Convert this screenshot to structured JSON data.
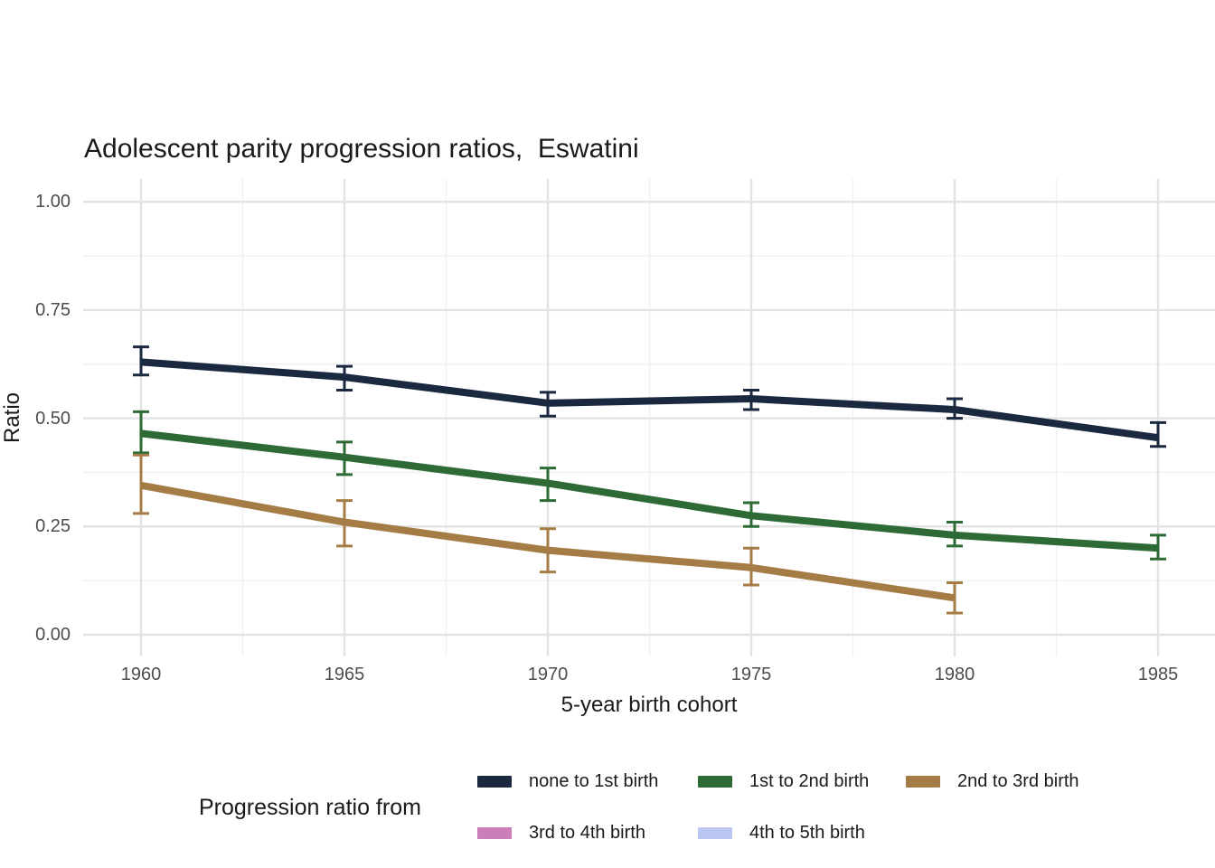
{
  "title": "Adolescent parity progression ratios,  Eswatini",
  "x_axis": {
    "label": "5-year birth cohort",
    "tick_labels": [
      "1960",
      "1965",
      "1970",
      "1975",
      "1980",
      "1985"
    ]
  },
  "y_axis": {
    "label": "Ratio",
    "tick_labels": [
      "1.00",
      "0.75",
      "0.50",
      "0.25",
      "0.00"
    ]
  },
  "legend": {
    "title": "Progression ratio from",
    "items": [
      {
        "label": "none to 1st birth",
        "color": "#1b2940",
        "row": 0
      },
      {
        "label": "1st to 2nd birth",
        "color": "#2d6a35",
        "row": 0
      },
      {
        "label": "2nd to 3rd birth",
        "color": "#a57c45",
        "row": 0
      },
      {
        "label": "3rd to 4th birth",
        "color": "#cb7eb7",
        "row": 1
      },
      {
        "label": "4th to 5th birth",
        "color": "#bcc6f2",
        "row": 1
      }
    ]
  },
  "chart_data": {
    "type": "line",
    "title": "Adolescent parity progression ratios,  Eswatini",
    "xlabel": "5-year birth cohort",
    "ylabel": "Ratio",
    "xlim": [
      1958.6,
      1986.4
    ],
    "ylim": [
      0,
      1
    ],
    "x_major_ticks": [
      1960,
      1965,
      1970,
      1975,
      1980,
      1985
    ],
    "x_minor_ticks": [
      1962.5,
      1967.5,
      1972.5,
      1977.5,
      1982.5
    ],
    "y_major_ticks": [
      0,
      0.25,
      0.5,
      0.75,
      1.0
    ],
    "y_minor_ticks": [
      0.125,
      0.375,
      0.625,
      0.875
    ],
    "grid": true,
    "error_bars": true,
    "legend_position": "bottom",
    "series": [
      {
        "name": "none to 1st birth",
        "color": "#1b2940",
        "x": [
          1960,
          1965,
          1970,
          1975,
          1980,
          1985
        ],
        "y": [
          0.63,
          0.595,
          0.535,
          0.545,
          0.52,
          0.455
        ],
        "ci_low": [
          0.6,
          0.565,
          0.505,
          0.52,
          0.5,
          0.435
        ],
        "ci_high": [
          0.665,
          0.62,
          0.56,
          0.565,
          0.545,
          0.49
        ]
      },
      {
        "name": "1st to 2nd birth",
        "color": "#2d6a35",
        "x": [
          1960,
          1965,
          1970,
          1975,
          1980,
          1985
        ],
        "y": [
          0.465,
          0.41,
          0.35,
          0.275,
          0.23,
          0.2
        ],
        "ci_low": [
          0.42,
          0.37,
          0.31,
          0.25,
          0.205,
          0.175
        ],
        "ci_high": [
          0.515,
          0.445,
          0.385,
          0.305,
          0.26,
          0.23
        ]
      },
      {
        "name": "2nd to 3rd birth",
        "color": "#a57c45",
        "x": [
          1960,
          1965,
          1970,
          1975,
          1980
        ],
        "y": [
          0.345,
          0.26,
          0.195,
          0.155,
          0.085
        ],
        "ci_low": [
          0.28,
          0.205,
          0.145,
          0.115,
          0.05
        ],
        "ci_high": [
          0.415,
          0.31,
          0.245,
          0.2,
          0.12
        ]
      },
      {
        "name": "3rd to 4th birth",
        "color": "#cb7eb7",
        "x": [],
        "y": []
      },
      {
        "name": "4th to 5th birth",
        "color": "#bcc6f2",
        "x": [],
        "y": []
      }
    ]
  }
}
